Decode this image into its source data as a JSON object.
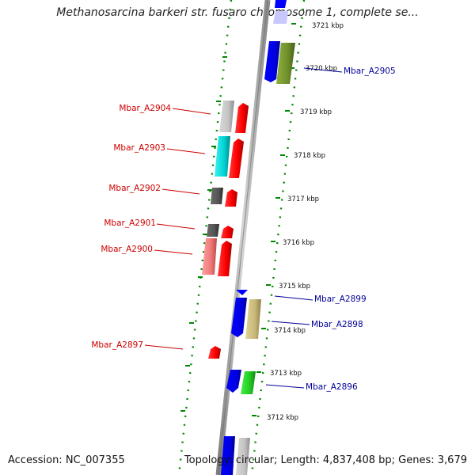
{
  "title": "Methanosarcina barkeri str. fusaro chromosome 1, complete se...",
  "accession": "Accession: NC_007355",
  "topology": "Topology: circular; Length: 4,837,408 bp; Genes: 3,679",
  "colors": {
    "forward_label": "#cc0000",
    "reverse_label": "#000099",
    "ticks": "#008800",
    "backbone": "#9a9a9a"
  },
  "kbp_labels": [
    "3721 kbp",
    "3720 kbp",
    "3719 kbp",
    "3718 kbp",
    "3717 kbp",
    "3716 kbp",
    "3715 kbp",
    "3714 kbp",
    "3713 kbp",
    "3712 kbp"
  ],
  "genes_left": [
    {
      "label": "Mbar_A2904"
    },
    {
      "label": "Mbar_A2903"
    },
    {
      "label": "Mbar_A2902"
    },
    {
      "label": "Mbar_A2901"
    },
    {
      "label": "Mbar_A2900"
    },
    {
      "label": "Mbar_A2897"
    }
  ],
  "genes_right": [
    {
      "label": "Mbar_A2905"
    },
    {
      "label": "Mbar_A2899"
    },
    {
      "label": "Mbar_A2898"
    },
    {
      "label": "Mbar_A2896"
    }
  ]
}
